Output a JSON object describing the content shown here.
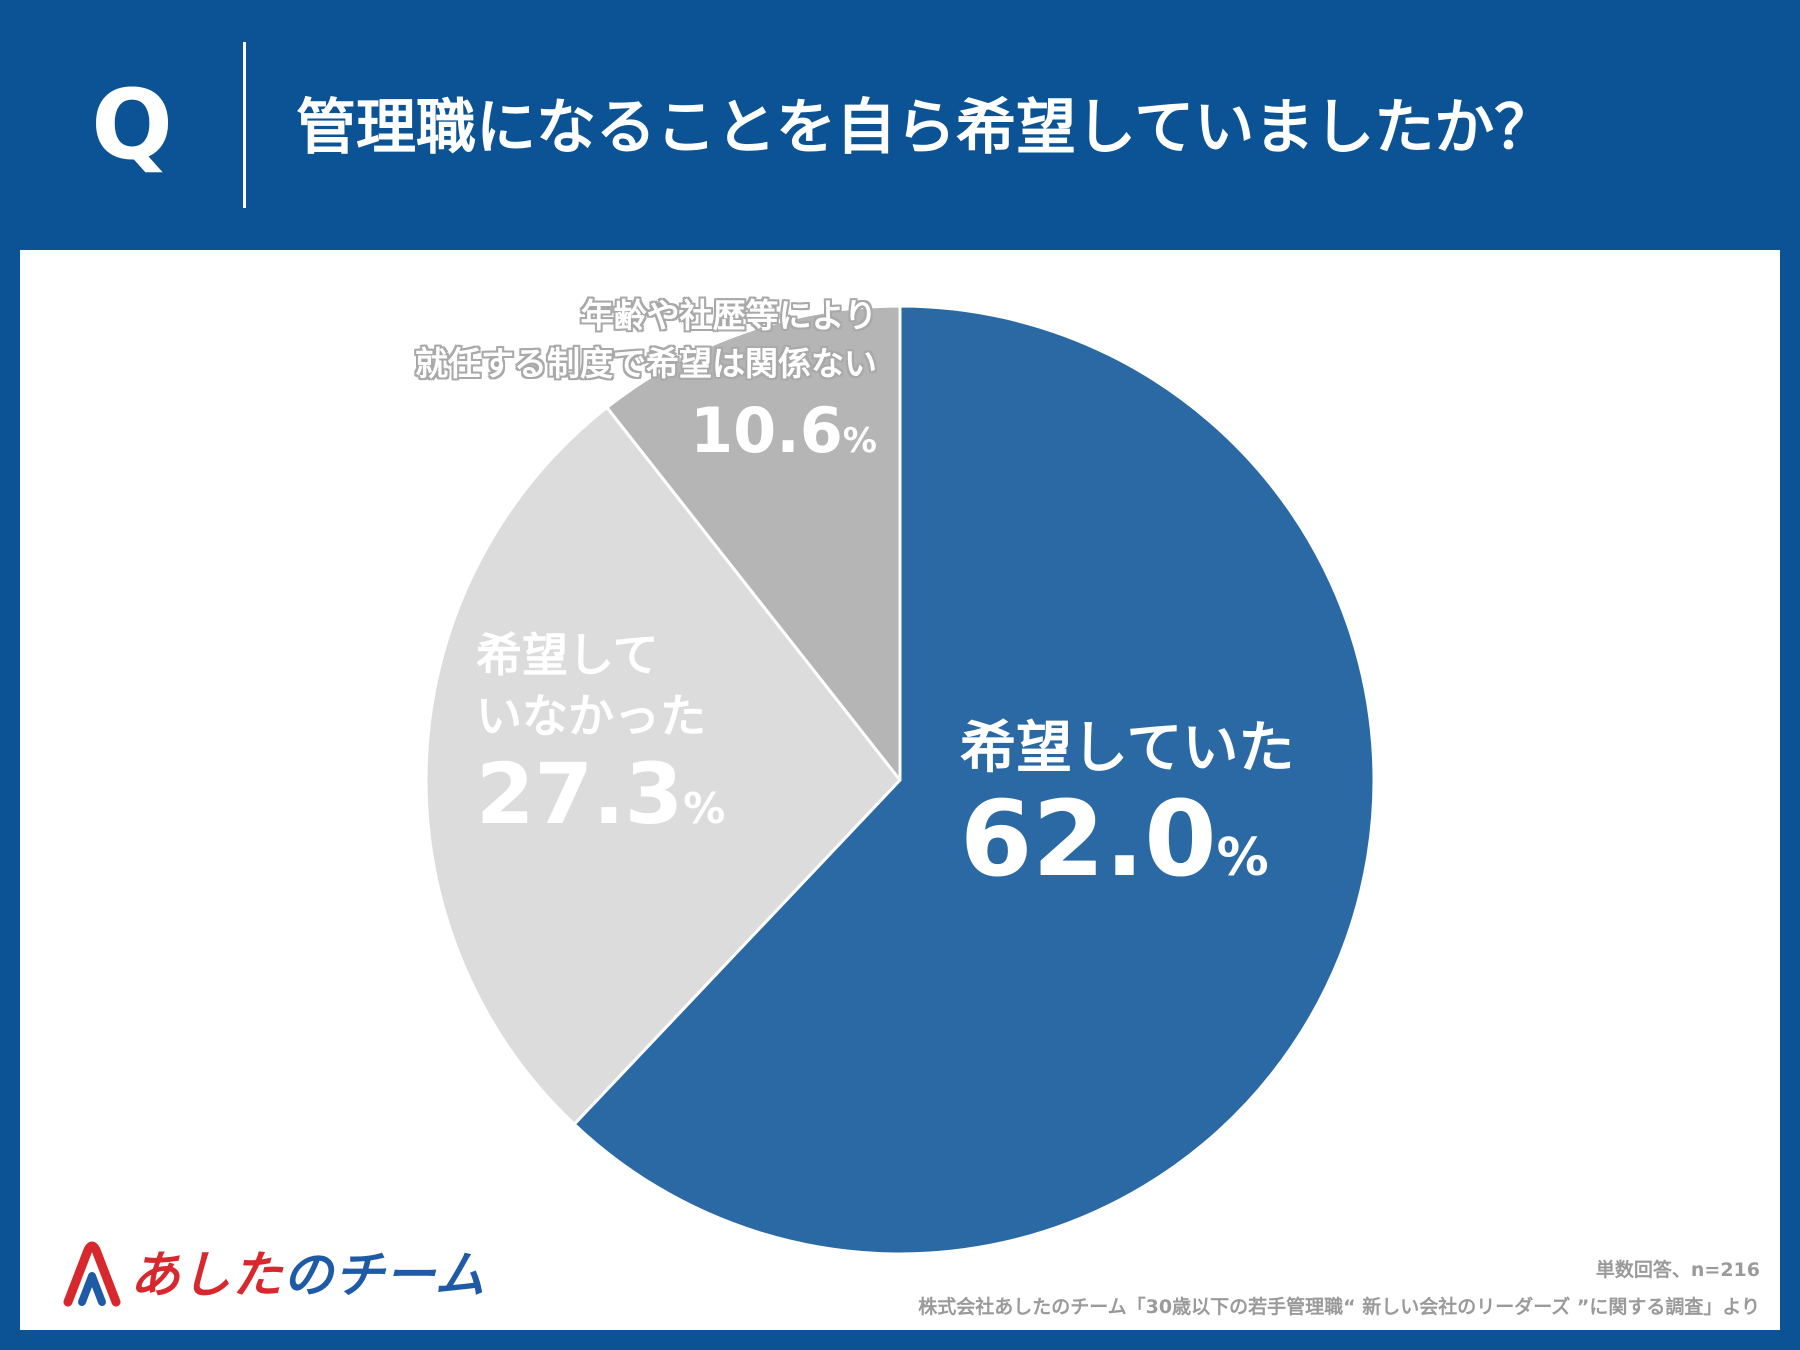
{
  "header": {
    "q_mark": "Q",
    "question": "管理職になることを自ら希望していましたか？"
  },
  "chart_data": {
    "type": "pie",
    "title": "管理職になることを自ら希望していましたか？",
    "slices": [
      {
        "label": "希望していた",
        "value": 62.0,
        "display": "62.0",
        "color": "#2b69a5"
      },
      {
        "label": "希望していなかった",
        "line1": "希望して",
        "line2": "いなかった",
        "value": 27.3,
        "display": "27.3",
        "color": "#dcdcdc"
      },
      {
        "label": "年齢や社歴等により就任する制度で希望は関係ない",
        "line1": "年齢や社歴等により",
        "line2": "就任する制度で希望は関係ない",
        "value": 10.6,
        "display": "10.6",
        "color": "#b5b5b5"
      }
    ],
    "unit": "%",
    "start_angle_deg": 0,
    "direction": "clockwise"
  },
  "logo": {
    "part1": "あした",
    "part2": "のチーム"
  },
  "notes": {
    "n": "単数回答、n=216",
    "source": "株式会社あしたのチーム「30歳以下の若手管理職“ 新しい会社のリーダーズ ”に関する調査」より"
  }
}
